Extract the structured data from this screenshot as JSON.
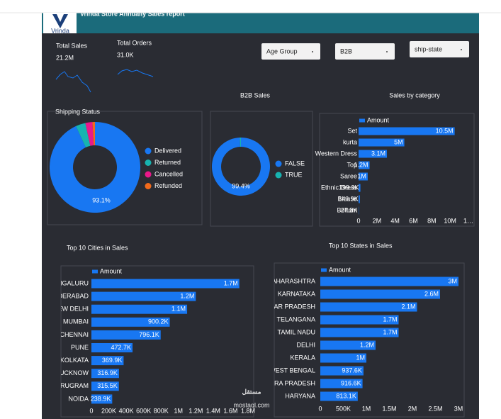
{
  "header": {
    "title": "Vrinda Store Annually Sales report",
    "logo": "Vrinda"
  },
  "kpis": [
    {
      "label": "Total Sales",
      "value": "21.2M"
    },
    {
      "label": "Total Orders",
      "value": "31.0K"
    }
  ],
  "slicers": [
    "Age Group",
    "B2B",
    "ship-state"
  ],
  "watermark": {
    "arabic": "مستقل",
    "latin": "mostaql.com"
  },
  "chart_data": [
    {
      "type": "donut",
      "title": "Shipping Status",
      "categories": [
        "Delivered",
        "Returned",
        "Cancelled",
        "Refunded"
      ],
      "values": [
        93.1,
        3.5,
        2.5,
        0.9
      ],
      "value_labels": [
        "93.1%",
        null,
        null,
        null
      ],
      "colors": [
        "#1877f2",
        "#17b3b0",
        "#e9188a",
        "#f26a1b"
      ]
    },
    {
      "type": "donut",
      "title": "B2B Sales",
      "categories": [
        "FALSE",
        "TRUE"
      ],
      "values": [
        99.4,
        0.6
      ],
      "value_labels": [
        "99.4%",
        null
      ],
      "colors": [
        "#1877f2",
        "#17b3b0"
      ]
    },
    {
      "type": "hbar",
      "title": "Sales by category",
      "categories": [
        "Set",
        "kurta",
        "Western Dress",
        "Top",
        "Saree",
        "Ethnic Dress",
        "Blouse",
        "Bottom"
      ],
      "series": [
        {
          "name": "Amount",
          "color": "#1877f2",
          "values": [
            10500000,
            5000000,
            3100000,
            1200000,
            1000000,
            199300,
            140900,
            27800
          ],
          "value_labels": [
            "10.5M",
            "5M",
            "3.1M",
            "1.2M",
            "1M",
            "199.3K",
            "140.9K",
            "27.8K"
          ]
        }
      ],
      "xlim": [
        0,
        12000000
      ],
      "xticks": [
        0,
        {
          "value": 2000000,
          "label": "2M"
        },
        {
          "value": 4000000,
          "label": "4M"
        },
        {
          "value": 6000000,
          "label": "6M"
        },
        {
          "value": 8000000,
          "label": "8M"
        },
        {
          "value": 10000000,
          "label": "10M"
        },
        {
          "value": 12000000,
          "label": "1…"
        }
      ]
    },
    {
      "type": "hbar",
      "title": "Top 10  Cities in Sales",
      "categories": [
        "BENGALURU",
        "HYDERABAD",
        "NEW DELHI",
        "MUMBAI",
        "CHENNAI",
        "PUNE",
        "KOLKATA",
        "LUCKNOW",
        "GURUGRAM",
        "NOIDA"
      ],
      "series": [
        {
          "name": "Amount",
          "color": "#1877f2",
          "values": [
            1700000,
            1200000,
            1100000,
            900200,
            796100,
            472700,
            369900,
            316900,
            315500,
            238900
          ],
          "value_labels": [
            "1.7M",
            "1.2M",
            "1.1M",
            "900.2K",
            "796.1K",
            "472.7K",
            "369.9K",
            "316.9K",
            "315.5K",
            "238.9K"
          ]
        }
      ],
      "xlim": [
        0,
        1800000
      ],
      "xticks": [
        0,
        {
          "value": 200000,
          "label": "200K"
        },
        {
          "value": 400000,
          "label": "400K"
        },
        {
          "value": 600000,
          "label": "600K"
        },
        {
          "value": 800000,
          "label": "800K"
        },
        {
          "value": 1000000,
          "label": "1M"
        },
        {
          "value": 1200000,
          "label": "1.2M"
        },
        {
          "value": 1400000,
          "label": "1.4M"
        },
        {
          "value": 1600000,
          "label": "1.6M"
        },
        {
          "value": 1800000,
          "label": "1.8M"
        }
      ]
    },
    {
      "type": "hbar",
      "title": "Top 10 States in Sales",
      "categories": [
        "MAHARASHTRA",
        "KARNATAKA",
        "UTTAR PRADESH",
        "TELANGANA",
        "TAMIL NADU",
        "DELHI",
        "KERALA",
        "WEST BENGAL",
        "ANDHRA PRADESH",
        "HARYANA"
      ],
      "series": [
        {
          "name": "Amount",
          "color": "#1877f2",
          "values": [
            3000000,
            2600000,
            2100000,
            1700000,
            1700000,
            1200000,
            1000000,
            937600,
            916600,
            813100
          ],
          "value_labels": [
            "3M",
            "2.6M",
            "2.1M",
            "1.7M",
            "1.7M",
            "1.2M",
            "1M",
            "937.6K",
            "916.6K",
            "813.1K"
          ]
        }
      ],
      "xlim": [
        0,
        3000000
      ],
      "xticks": [
        0,
        {
          "value": 500000,
          "label": "500K"
        },
        {
          "value": 1000000,
          "label": "1M"
        },
        {
          "value": 1500000,
          "label": "1.5M"
        },
        {
          "value": 2000000,
          "label": "2M"
        },
        {
          "value": 2500000,
          "label": "2.5M"
        },
        {
          "value": 3000000,
          "label": "3M"
        }
      ]
    }
  ]
}
